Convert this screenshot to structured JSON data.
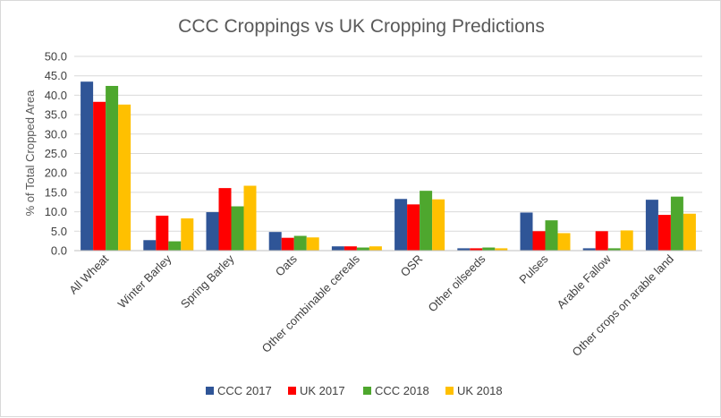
{
  "chart_data": {
    "type": "bar",
    "title": "CCC Croppings vs UK Cropping Predictions",
    "xlabel": "",
    "ylabel": "% of Total Cropped Area",
    "ylim": [
      0,
      50
    ],
    "ytick_step": 5,
    "yticks": [
      "0.0",
      "5.0",
      "10.0",
      "15.0",
      "20.0",
      "25.0",
      "30.0",
      "35.0",
      "40.0",
      "45.0",
      "50.0"
    ],
    "grid": true,
    "legend_position": "bottom",
    "categories": [
      "All Wheat",
      "Winter Barley",
      "Spring Barley",
      "Oats",
      "Other combinable cereals",
      "OSR",
      "Other oilseeds",
      "Pulses",
      "Arable Fallow",
      "Other crops on arable land"
    ],
    "series": [
      {
        "name": "CCC 2017",
        "color": "#2f5597",
        "values": [
          43.5,
          2.7,
          9.9,
          4.8,
          1.1,
          13.3,
          0.6,
          9.8,
          0.6,
          13.1
        ]
      },
      {
        "name": "UK 2017",
        "color": "#ff0000",
        "values": [
          38.3,
          9.0,
          16.1,
          3.3,
          1.1,
          11.9,
          0.6,
          5.0,
          5.0,
          9.2
        ]
      },
      {
        "name": "CCC 2018",
        "color": "#4ea72e",
        "values": [
          42.4,
          2.4,
          11.4,
          3.8,
          0.8,
          15.4,
          0.8,
          7.8,
          0.6,
          13.9
        ]
      },
      {
        "name": "UK 2018",
        "color": "#ffc000",
        "values": [
          37.6,
          8.3,
          16.7,
          3.4,
          1.1,
          13.2,
          0.6,
          4.5,
          5.2,
          9.5
        ]
      }
    ]
  }
}
